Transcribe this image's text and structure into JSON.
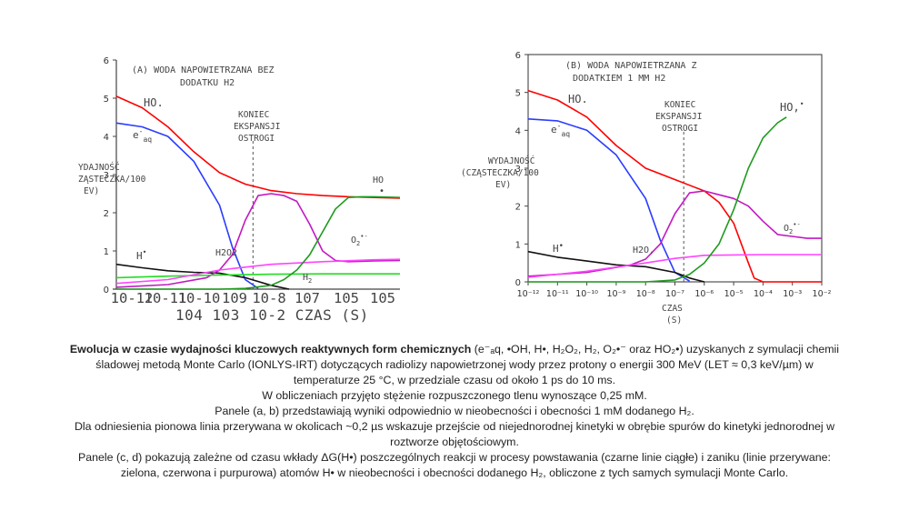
{
  "chart_data": [
    {
      "type": "line",
      "title": "(A) WODA NAPOWIETRZANA BEZ DODATKU H2",
      "ylabel": "WYDAJNOŚĆ (CZĄSTECZKA/100 EV)",
      "xlabel": "CZAS (S)",
      "ylim": [
        0,
        6
      ],
      "yticks": [
        "0",
        "1",
        "2",
        "3",
        "4",
        "5",
        "6"
      ],
      "xlim": [
        -12,
        -1
      ],
      "xtick_row1": [
        "10-12",
        "10-11",
        "10-10",
        "109",
        "10-8",
        "107",
        "105",
        "105"
      ],
      "xtick_row2": "104 103 10-2 CZAS (S)",
      "annotation": {
        "lines": [
          "KONIEC",
          "EKSPANSJI",
          "OSTROGI"
        ],
        "x_log": -6.7
      },
      "series": [
        {
          "name": "HO•",
          "label": "HO.",
          "color": "#ff0000",
          "x": [
            -12,
            -11,
            -10,
            -9,
            -8,
            -7,
            -6,
            -5,
            -4,
            -3,
            -2,
            -1
          ],
          "y": [
            5.05,
            4.75,
            4.25,
            3.6,
            3.05,
            2.75,
            2.58,
            2.5,
            2.45,
            2.42,
            2.4,
            2.38
          ]
        },
        {
          "name": "e⁻aq",
          "label": "e-aq",
          "color": "#2a3cff",
          "x": [
            -12,
            -11,
            -10,
            -9,
            -8,
            -7.5,
            -7,
            -6.5
          ],
          "y": [
            4.35,
            4.25,
            4.0,
            3.35,
            2.2,
            1.1,
            0.25,
            0.02
          ]
        },
        {
          "name": "H•",
          "label": "H•",
          "color": "#111111",
          "x": [
            -12,
            -11,
            -10,
            -9,
            -8,
            -7,
            -6,
            -5.3
          ],
          "y": [
            0.65,
            0.56,
            0.48,
            0.44,
            0.42,
            0.3,
            0.1,
            0.0
          ]
        },
        {
          "name": "H2O2",
          "label": "H2O2",
          "color": "#c218c2",
          "x": [
            -12,
            -10,
            -8.5,
            -8,
            -7.5,
            -7,
            -6.5,
            -6,
            -5.5,
            -5,
            -4.5,
            -4,
            -3.5,
            -3,
            -2,
            -1
          ],
          "y": [
            0.05,
            0.12,
            0.3,
            0.5,
            0.9,
            1.8,
            2.45,
            2.5,
            2.45,
            2.3,
            1.7,
            1.0,
            0.75,
            0.72,
            0.74,
            0.75
          ]
        },
        {
          "name": "H2",
          "label": "H2",
          "color": "#22dd22",
          "x": [
            -12,
            -10,
            -8,
            -6,
            -4,
            -2,
            -1
          ],
          "y": [
            0.3,
            0.34,
            0.37,
            0.39,
            0.4,
            0.4,
            0.4
          ]
        },
        {
          "name": "O2•⁻",
          "label": "O2•-",
          "color": "#ff44ff",
          "x": [
            -12,
            -10,
            -8,
            -6,
            -4,
            -2,
            -1
          ],
          "y": [
            0.15,
            0.25,
            0.5,
            0.65,
            0.72,
            0.77,
            0.78
          ]
        },
        {
          "name": "HO2•",
          "label": "HO•",
          "color": "#1f9a1f",
          "x": [
            -12,
            -8,
            -7,
            -6,
            -5.5,
            -5,
            -4.5,
            -4,
            -3.5,
            -3,
            -2.5,
            -2,
            -1
          ],
          "y": [
            0.0,
            0.0,
            0.02,
            0.1,
            0.25,
            0.5,
            0.9,
            1.5,
            2.1,
            2.4,
            2.42,
            2.42,
            2.4
          ]
        }
      ]
    },
    {
      "type": "line",
      "title": "(B) WODA NAPOWIETRZANA Z DODATKIEM 1 MM H2",
      "ylabel": "WYDAJNOŚĆ (CZĄSTECZKA/100 EV)",
      "xlabel": "CZAS (S)",
      "ylim": [
        0,
        6
      ],
      "yticks": [
        "0",
        "1",
        "2",
        "3",
        "4",
        "5",
        "6"
      ],
      "xlim": [
        -12,
        -2
      ],
      "xticks": [
        "10⁻¹²",
        "10⁻¹¹",
        "10⁻¹⁰",
        "10⁻⁹",
        "10⁻⁸",
        "10⁻⁷",
        "10⁻⁶",
        "10⁻⁵",
        "10⁻⁴",
        "10⁻³",
        "10⁻²"
      ],
      "annotation": {
        "lines": [
          "KONIEC",
          "EKSPANSJI",
          "OSTROGI"
        ],
        "x_log": -6.7
      },
      "series": [
        {
          "name": "HO•",
          "label": "HO.",
          "color": "#ff0000",
          "x": [
            -12,
            -11,
            -10,
            -9,
            -8,
            -7,
            -6,
            -5.5,
            -5,
            -4.5,
            -4.3,
            -4,
            -3,
            -2
          ],
          "y": [
            5.05,
            4.8,
            4.35,
            3.6,
            3.0,
            2.7,
            2.4,
            2.1,
            1.55,
            0.5,
            0.1,
            0.0,
            0.0,
            0.0
          ]
        },
        {
          "name": "e⁻aq",
          "label": "e-aq",
          "color": "#2a3cff",
          "x": [
            -12,
            -11,
            -10,
            -9,
            -8,
            -7.5,
            -7,
            -6.5
          ],
          "y": [
            4.3,
            4.25,
            4.0,
            3.35,
            2.2,
            1.1,
            0.25,
            0.02
          ]
        },
        {
          "name": "H•",
          "label": "H•",
          "color": "#111111",
          "x": [
            -12,
            -11,
            -10,
            -9,
            -8,
            -7,
            -6.5,
            -6
          ],
          "y": [
            0.8,
            0.65,
            0.55,
            0.45,
            0.4,
            0.25,
            0.1,
            0.0
          ]
        },
        {
          "name": "H2O2",
          "label": "H2O2",
          "color": "#c218c2",
          "x": [
            -12,
            -10,
            -8.5,
            -8,
            -7.5,
            -7,
            -6.5,
            -6,
            -5.5,
            -5,
            -4.5,
            -4,
            -3.5,
            -3,
            -2.5,
            -2
          ],
          "y": [
            0.15,
            0.25,
            0.45,
            0.6,
            1.0,
            1.8,
            2.35,
            2.4,
            2.3,
            2.2,
            2.0,
            1.6,
            1.25,
            1.2,
            1.15,
            1.15
          ]
        },
        {
          "name": "O2•⁻",
          "label": "O2•-",
          "color": "#ff44ff",
          "x": [
            -12,
            -10,
            -8,
            -7,
            -6,
            -4,
            -2
          ],
          "y": [
            0.12,
            0.28,
            0.5,
            0.62,
            0.7,
            0.72,
            0.72
          ]
        },
        {
          "name": "HO2•",
          "label": "HO2•",
          "color": "#1f9a1f",
          "x": [
            -12,
            -8,
            -7,
            -6.5,
            -6,
            -5.5,
            -5,
            -4.5,
            -4,
            -3.5,
            -3.2
          ],
          "y": [
            0.0,
            0.0,
            0.05,
            0.2,
            0.5,
            1.0,
            1.9,
            3.0,
            3.8,
            4.2,
            4.35
          ]
        }
      ]
    }
  ],
  "caption": {
    "title": "Ewolucja w czasie wydajności kluczowych reaktywnych form chemicznych",
    "line1_rest": " (e⁻ₐq, •OH, H•, H₂O₂, H₂, O₂•⁻ oraz HO₂•) uzyskanych z symulacji chemii śladowej metodą Monte Carlo (IONLYS-IRT) dotyczących radiolizy napowietrzonej wody przez protony o energii 300 MeV (LET ≈ 0,3 keV/µm) w temperaturze 25 °C, w przedziale czasu od około 1 ps do 10 ms.",
    "line2": "W obliczeniach przyjęto stężenie rozpuszczonego tlenu wynoszące 0,25 mM.",
    "line3": "Panele (a, b) przedstawiają wyniki odpowiednio w nieobecności i obecności 1 mM dodanego H₂.",
    "line4": "Dla odniesienia pionowa linia przerywana w okolicach ~0,2 µs wskazuje przejście od niejednorodnej kinetyki w obrębie spurów do kinetyki jednorodnej w roztworze objętościowym.",
    "line5": "Panele (c, d) pokazują zależne od czasu wkłady ΔG(H•) poszczególnych reakcji w procesy powstawania (czarne linie ciągłe) i zaniku (linie przerywane: zielona, czerwona i purpurowa) atomów H• w nieobecności i obecności dodanego H₂, obliczone z tych samych symulacji Monte Carlo."
  }
}
